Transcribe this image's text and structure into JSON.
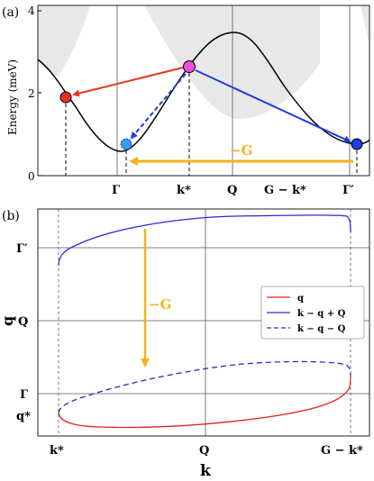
{
  "panel_a": {
    "tag": "(a)",
    "ylabel": "Energy (meV)",
    "yticks": [
      "0",
      "2",
      "4"
    ],
    "xticks": [
      "Γ",
      "k*",
      "Q",
      "G − k*",
      "Γ′"
    ],
    "arrow_label": "−G"
  },
  "panel_b": {
    "tag": "(b)",
    "ylabel": "q",
    "xlabel": "k",
    "yticks": [
      "Γ′",
      "Q",
      "Γ",
      "q*"
    ],
    "xticks": [
      "k*",
      "Q",
      "G − k*"
    ],
    "arrow_label": "−G",
    "legend": [
      "q",
      "k − q + Q",
      "k − q − Q"
    ]
  },
  "colors": {
    "red": "#e8321e",
    "blue": "#1f3be0",
    "lightblue": "#3a9ae8",
    "magenta": "#f04de0",
    "orange": "#f5b21a",
    "shade": "#e8e8e8",
    "red_line": "#e02020",
    "blue_line": "#2a2ad6"
  },
  "chart_data": [
    {
      "type": "line",
      "ylabel": "Energy (meV)",
      "ylim": [
        0,
        4.2
      ],
      "x_ticks": [
        "Γ",
        "k*",
        "Q",
        "G − k*",
        "Γ′"
      ],
      "series": [
        {
          "values": [
            2.9,
            1.9,
            0.75,
            2.65,
            3.5,
            1.2,
            0.8
          ]
        }
      ],
      "points": [
        {
          "color": "red",
          "energy": 1.9
        },
        {
          "color": "magenta",
          "energy": 2.65
        },
        {
          "color": "lightblue",
          "energy": 0.75
        },
        {
          "color": "blue",
          "energy": 0.75
        }
      ]
    },
    {
      "type": "line",
      "xlabel": "k",
      "ylabel": "q",
      "x_ticks": [
        "k*",
        "Q",
        "G − k*"
      ],
      "y_ticks": [
        "Γ′",
        "Q",
        "Γ",
        "q*"
      ],
      "legend": [
        "q",
        "k − q + Q",
        "k − q − Q"
      ],
      "legend_position": "right"
    }
  ]
}
